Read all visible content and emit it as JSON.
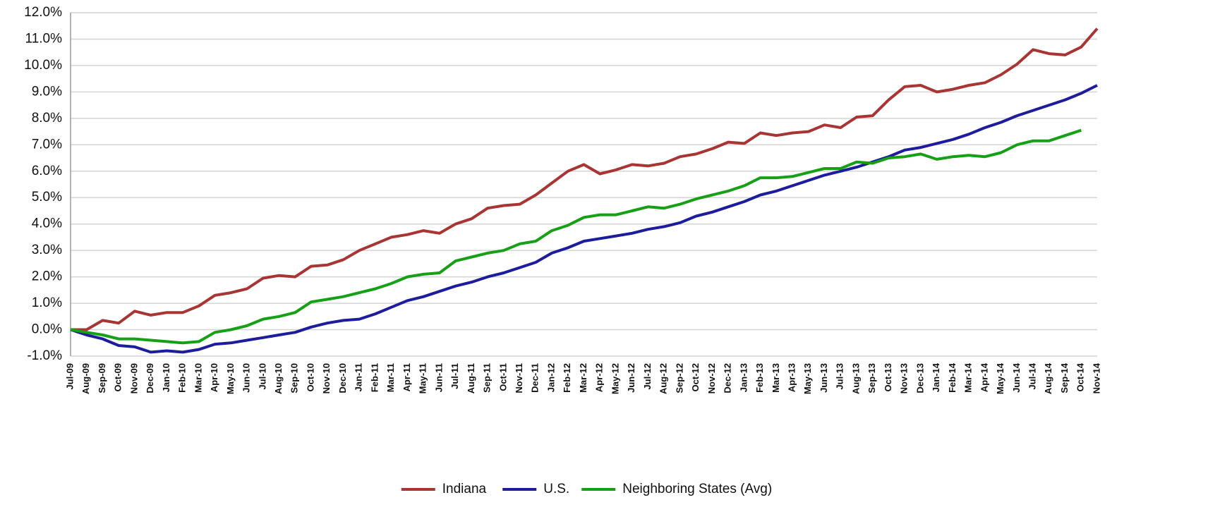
{
  "chart_data": {
    "type": "line",
    "categories": [
      "Jul-09",
      "Aug-09",
      "Sep-09",
      "Oct-09",
      "Nov-09",
      "Dec-09",
      "Jan-10",
      "Feb-10",
      "Mar-10",
      "Apr-10",
      "May-10",
      "Jun-10",
      "Jul-10",
      "Aug-10",
      "Sep-10",
      "Oct-10",
      "Nov-10",
      "Dec-10",
      "Jan-11",
      "Feb-11",
      "Mar-11",
      "Apr-11",
      "May-11",
      "Jun-11",
      "Jul-11",
      "Aug-11",
      "Sep-11",
      "Oct-11",
      "Nov-11",
      "Dec-11",
      "Jan-12",
      "Feb-12",
      "Mar-12",
      "Apr-12",
      "May-12",
      "Jun-12",
      "Jul-12",
      "Aug-12",
      "Sep-12",
      "Oct-12",
      "Nov-12",
      "Dec-12",
      "Jan-13",
      "Feb-13",
      "Mar-13",
      "Apr-13",
      "May-13",
      "Jun-13",
      "Jul-13",
      "Aug-13",
      "Sep-13",
      "Oct-13",
      "Nov-13",
      "Dec-13",
      "Jan-14",
      "Feb-14",
      "Mar-14",
      "Apr-14",
      "May-14",
      "Jun-14",
      "Jul-14",
      "Aug-14",
      "Sep-14",
      "Oct-14",
      "Nov-14"
    ],
    "series": [
      {
        "name": "Indiana",
        "color": "#a93434",
        "values": [
          0,
          0,
          0.35,
          0.25,
          0.7,
          0.55,
          0.65,
          0.65,
          0.9,
          1.3,
          1.4,
          1.55,
          1.95,
          2.05,
          2.0,
          2.4,
          2.45,
          2.65,
          3.0,
          3.25,
          3.5,
          3.6,
          3.75,
          3.65,
          4.0,
          4.2,
          4.6,
          4.7,
          4.75,
          5.1,
          5.55,
          6.0,
          6.25,
          5.9,
          6.05,
          6.25,
          6.2,
          6.3,
          6.55,
          6.65,
          6.85,
          7.1,
          7.05,
          7.45,
          7.35,
          7.45,
          7.5,
          7.75,
          7.65,
          8.05,
          8.1,
          8.7,
          9.2,
          9.25,
          9.0,
          9.1,
          9.25,
          9.35,
          9.65,
          10.05,
          10.6,
          10.45,
          10.4,
          10.7,
          11.4
        ]
      },
      {
        "name": "U.S.",
        "color": "#1c1c9c",
        "values": [
          0,
          -0.2,
          -0.35,
          -0.6,
          -0.65,
          -0.85,
          -0.8,
          -0.85,
          -0.75,
          -0.55,
          -0.5,
          -0.4,
          -0.3,
          -0.2,
          -0.1,
          0.1,
          0.25,
          0.35,
          0.4,
          0.6,
          0.85,
          1.1,
          1.25,
          1.45,
          1.65,
          1.8,
          2.0,
          2.15,
          2.35,
          2.55,
          2.9,
          3.1,
          3.35,
          3.45,
          3.55,
          3.65,
          3.8,
          3.9,
          4.05,
          4.3,
          4.45,
          4.65,
          4.85,
          5.1,
          5.25,
          5.45,
          5.65,
          5.85,
          6.0,
          6.15,
          6.35,
          6.55,
          6.8,
          6.9,
          7.05,
          7.2,
          7.4,
          7.65,
          7.85,
          8.1,
          8.3,
          8.5,
          8.7,
          8.95,
          9.25
        ]
      },
      {
        "name": "Neighboring States (Avg)",
        "color": "#16a016",
        "values": [
          0,
          -0.1,
          -0.2,
          -0.35,
          -0.35,
          -0.4,
          -0.45,
          -0.5,
          -0.45,
          -0.1,
          0,
          0.15,
          0.4,
          0.5,
          0.65,
          1.05,
          1.15,
          1.25,
          1.4,
          1.55,
          1.75,
          2.0,
          2.1,
          2.15,
          2.6,
          2.75,
          2.9,
          3.0,
          3.25,
          3.35,
          3.75,
          3.95,
          4.25,
          4.35,
          4.35,
          4.5,
          4.65,
          4.6,
          4.75,
          4.95,
          5.1,
          5.25,
          5.45,
          5.75,
          5.75,
          5.8,
          5.95,
          6.1,
          6.1,
          6.35,
          6.3,
          6.5,
          6.55,
          6.65,
          6.45,
          6.55,
          6.6,
          6.55,
          6.7,
          7.0,
          7.15,
          7.15,
          7.35,
          7.55,
          null
        ]
      }
    ],
    "ylim": [
      -1,
      12
    ],
    "yticks": [
      {
        "value": -1,
        "label": "-1.0%"
      },
      {
        "value": 0,
        "label": "0.0%"
      },
      {
        "value": 1,
        "label": "1.0%"
      },
      {
        "value": 2,
        "label": "2.0%"
      },
      {
        "value": 3,
        "label": "3.0%"
      },
      {
        "value": 4,
        "label": "4.0%"
      },
      {
        "value": 5,
        "label": "5.0%"
      },
      {
        "value": 6,
        "label": "6.0%"
      },
      {
        "value": 7,
        "label": "7.0%"
      },
      {
        "value": 8,
        "label": "8.0%"
      },
      {
        "value": 9,
        "label": "9.0%"
      },
      {
        "value": 10,
        "label": "10.0%"
      },
      {
        "value": 11,
        "label": "11.0%"
      },
      {
        "value": 12,
        "label": "12.0%"
      }
    ],
    "grid": true,
    "legend": "bottom"
  }
}
